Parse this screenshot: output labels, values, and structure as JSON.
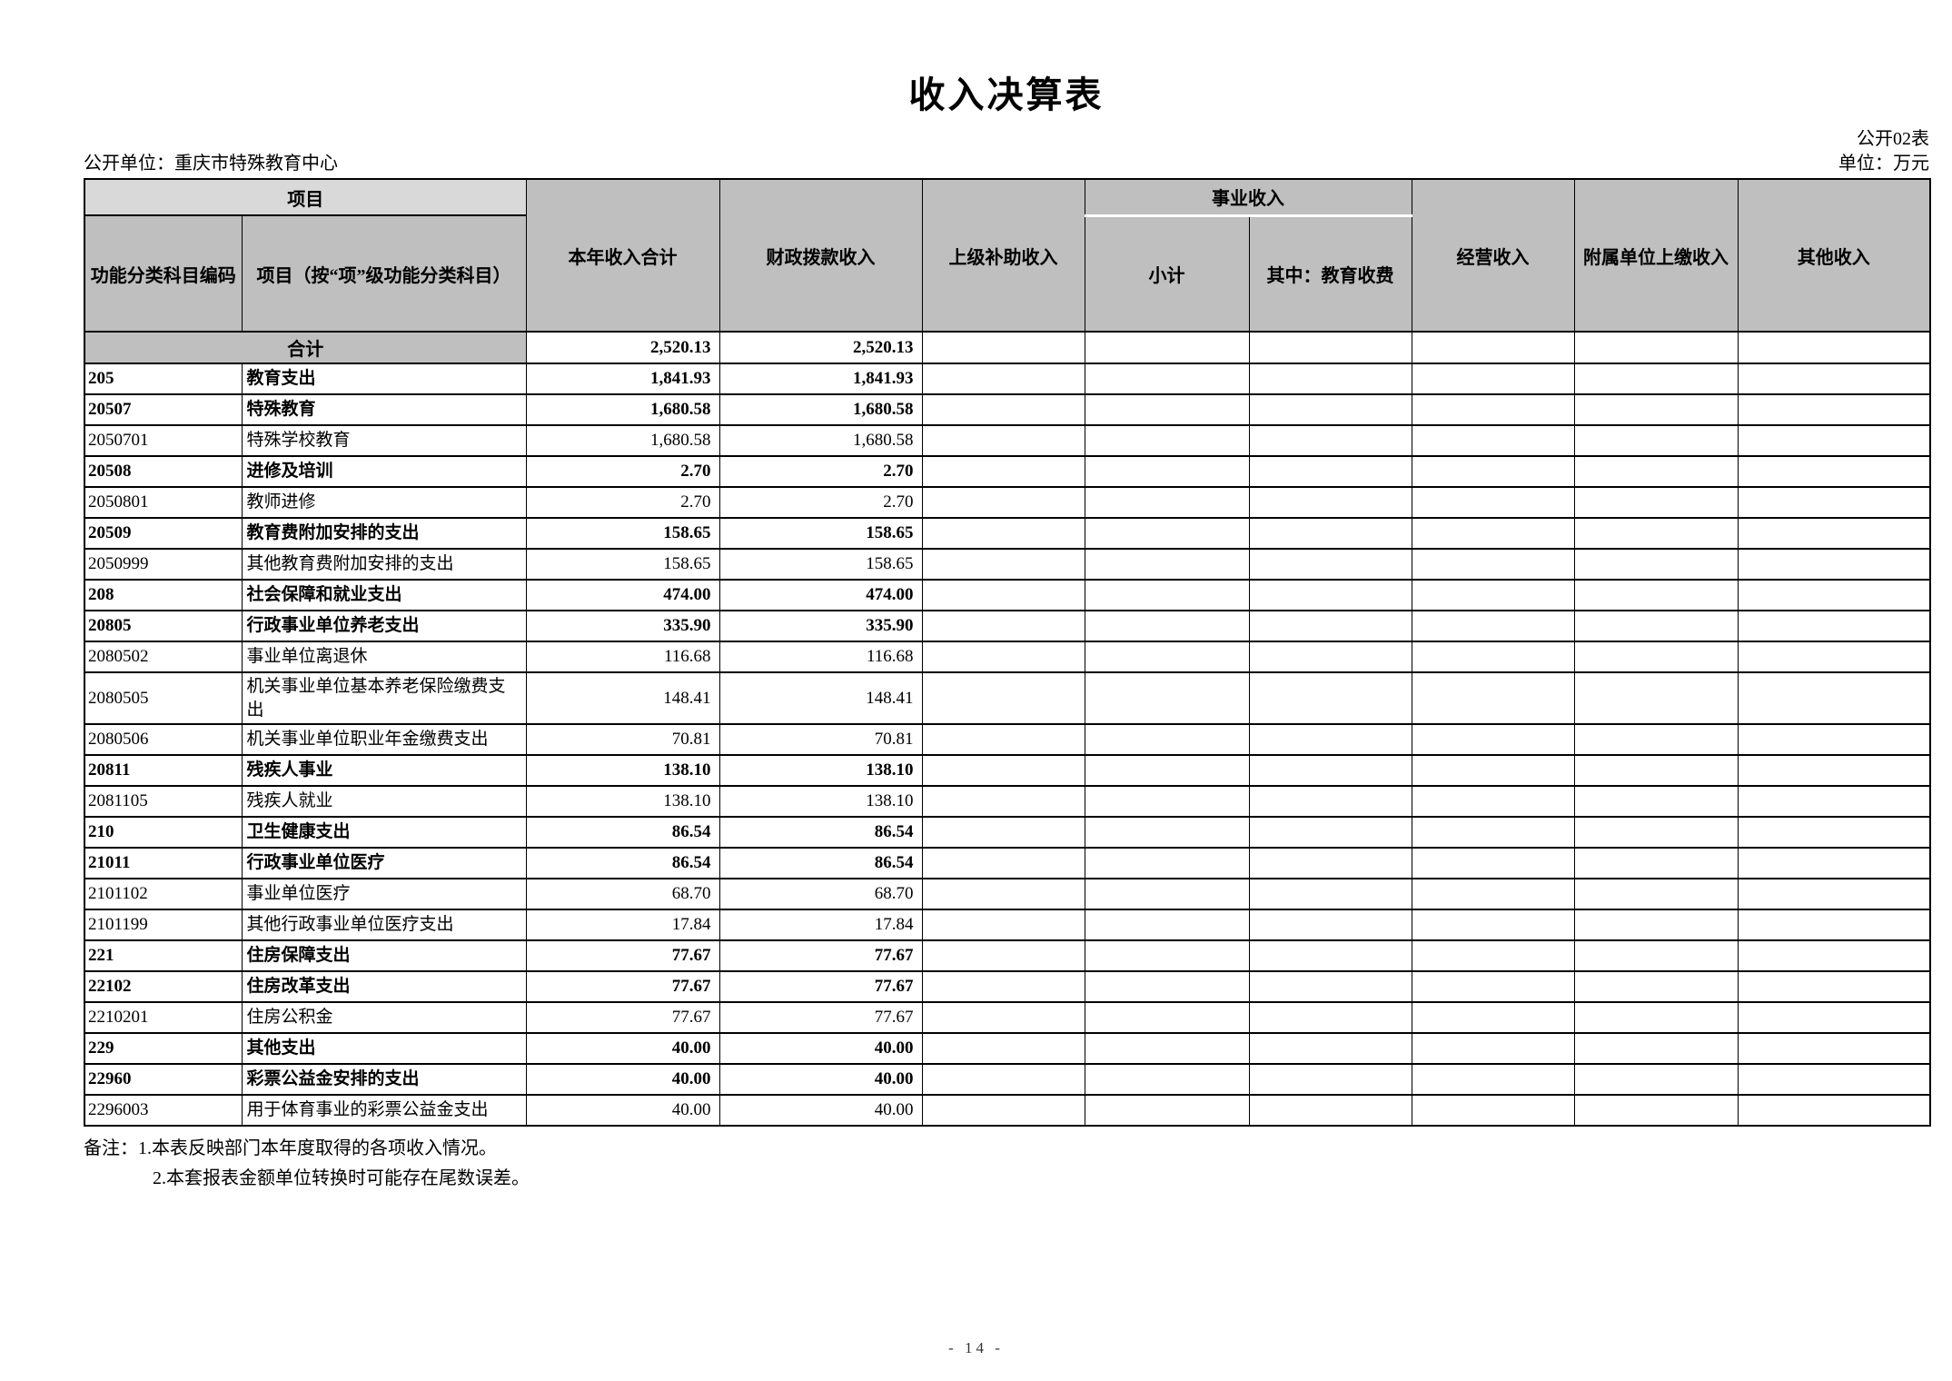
{
  "page": {
    "title": "收入决算表",
    "table_code": "公开02表",
    "org_label": "公开单位：重庆市特殊教育中心",
    "unit_label": "单位：万元",
    "page_number": "- 14 -"
  },
  "colors": {
    "header_bg": "#bfbfbf",
    "project_header_bg": "#d9d9d9",
    "border": "#000000"
  },
  "table": {
    "header": {
      "project_group": "项目",
      "code_col": "功能分类科目编码",
      "name_col": "项目（按“项”级功能分类科目）",
      "total_col": "本年收入合计",
      "fiscal_col": "财政拨款收入",
      "superior_col": "上级补助收入",
      "business_group": "事业收入",
      "subtotal_col": "小计",
      "education_fee_col": "其中：教育收费",
      "operating_col": "经营收入",
      "affiliated_col": "附属单位上缴收入",
      "other_col": "其他收入"
    },
    "total_row": {
      "label": "合计",
      "total": "2,520.13",
      "fiscal": "2,520.13"
    },
    "rows": [
      {
        "code": "205",
        "name": "教育支出",
        "total": "1,841.93",
        "fiscal": "1,841.93",
        "bold": true
      },
      {
        "code": "20507",
        "name": "特殊教育",
        "total": "1,680.58",
        "fiscal": "1,680.58",
        "bold": true
      },
      {
        "code": "2050701",
        "name": "特殊学校教育",
        "total": "1,680.58",
        "fiscal": "1,680.58",
        "bold": false
      },
      {
        "code": "20508",
        "name": "进修及培训",
        "total": "2.70",
        "fiscal": "2.70",
        "bold": true
      },
      {
        "code": "2050801",
        "name": "教师进修",
        "total": "2.70",
        "fiscal": "2.70",
        "bold": false
      },
      {
        "code": "20509",
        "name": "教育费附加安排的支出",
        "total": "158.65",
        "fiscal": "158.65",
        "bold": true
      },
      {
        "code": "2050999",
        "name": "其他教育费附加安排的支出",
        "total": "158.65",
        "fiscal": "158.65",
        "bold": false
      },
      {
        "code": "208",
        "name": "社会保障和就业支出",
        "total": "474.00",
        "fiscal": "474.00",
        "bold": true
      },
      {
        "code": "20805",
        "name": "行政事业单位养老支出",
        "total": "335.90",
        "fiscal": "335.90",
        "bold": true
      },
      {
        "code": "2080502",
        "name": "事业单位离退休",
        "total": "116.68",
        "fiscal": "116.68",
        "bold": false
      },
      {
        "code": "2080505",
        "name": "机关事业单位基本养老保险缴费支出",
        "total": "148.41",
        "fiscal": "148.41",
        "bold": false
      },
      {
        "code": "2080506",
        "name": "机关事业单位职业年金缴费支出",
        "total": "70.81",
        "fiscal": "70.81",
        "bold": false
      },
      {
        "code": "20811",
        "name": "残疾人事业",
        "total": "138.10",
        "fiscal": "138.10",
        "bold": true
      },
      {
        "code": "2081105",
        "name": "残疾人就业",
        "total": "138.10",
        "fiscal": "138.10",
        "bold": false
      },
      {
        "code": "210",
        "name": "卫生健康支出",
        "total": "86.54",
        "fiscal": "86.54",
        "bold": true
      },
      {
        "code": "21011",
        "name": "行政事业单位医疗",
        "total": "86.54",
        "fiscal": "86.54",
        "bold": true
      },
      {
        "code": "2101102",
        "name": "事业单位医疗",
        "total": "68.70",
        "fiscal": "68.70",
        "bold": false
      },
      {
        "code": "2101199",
        "name": "其他行政事业单位医疗支出",
        "total": "17.84",
        "fiscal": "17.84",
        "bold": false
      },
      {
        "code": "221",
        "name": "住房保障支出",
        "total": "77.67",
        "fiscal": "77.67",
        "bold": true
      },
      {
        "code": "22102",
        "name": "住房改革支出",
        "total": "77.67",
        "fiscal": "77.67",
        "bold": true
      },
      {
        "code": "2210201",
        "name": "住房公积金",
        "total": "77.67",
        "fiscal": "77.67",
        "bold": false
      },
      {
        "code": "229",
        "name": "其他支出",
        "total": "40.00",
        "fiscal": "40.00",
        "bold": true
      },
      {
        "code": "22960",
        "name": "彩票公益金安排的支出",
        "total": "40.00",
        "fiscal": "40.00",
        "bold": true
      },
      {
        "code": "2296003",
        "name": "用于体育事业的彩票公益金支出",
        "total": "40.00",
        "fiscal": "40.00",
        "bold": false
      }
    ]
  },
  "notes": {
    "line1": "备注：1.本表反映部门本年度取得的各项收入情况。",
    "line2": "2.本套报表金额单位转换时可能存在尾数误差。"
  }
}
